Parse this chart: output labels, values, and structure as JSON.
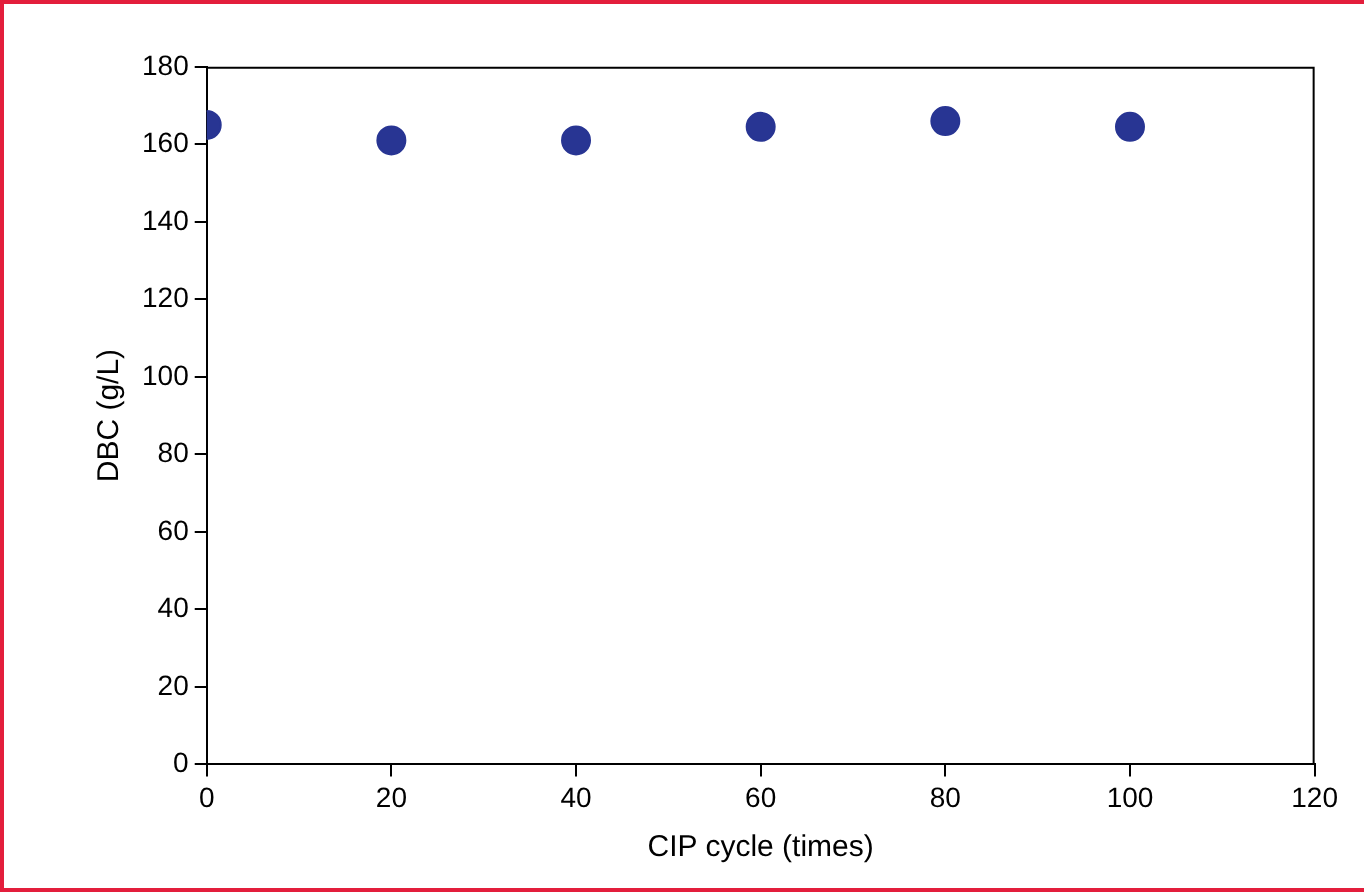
{
  "chart_data": {
    "type": "scatter",
    "xlabel": "CIP cycle (times)",
    "ylabel": "DBC (g/L)",
    "x": [
      0,
      20,
      40,
      60,
      80,
      100
    ],
    "series": [
      {
        "color": "#283593",
        "values": [
          165,
          161,
          161,
          164.5,
          166,
          164.5
        ]
      }
    ],
    "xlim": [
      0,
      120
    ],
    "xticks": [
      0,
      20,
      40,
      60,
      80,
      100,
      120
    ],
    "ylim": [
      0,
      180
    ],
    "yticks": [
      0,
      20,
      40,
      60,
      80,
      100,
      120,
      140,
      160,
      180
    ],
    "grid": false,
    "legend": false,
    "marker": "circle"
  }
}
